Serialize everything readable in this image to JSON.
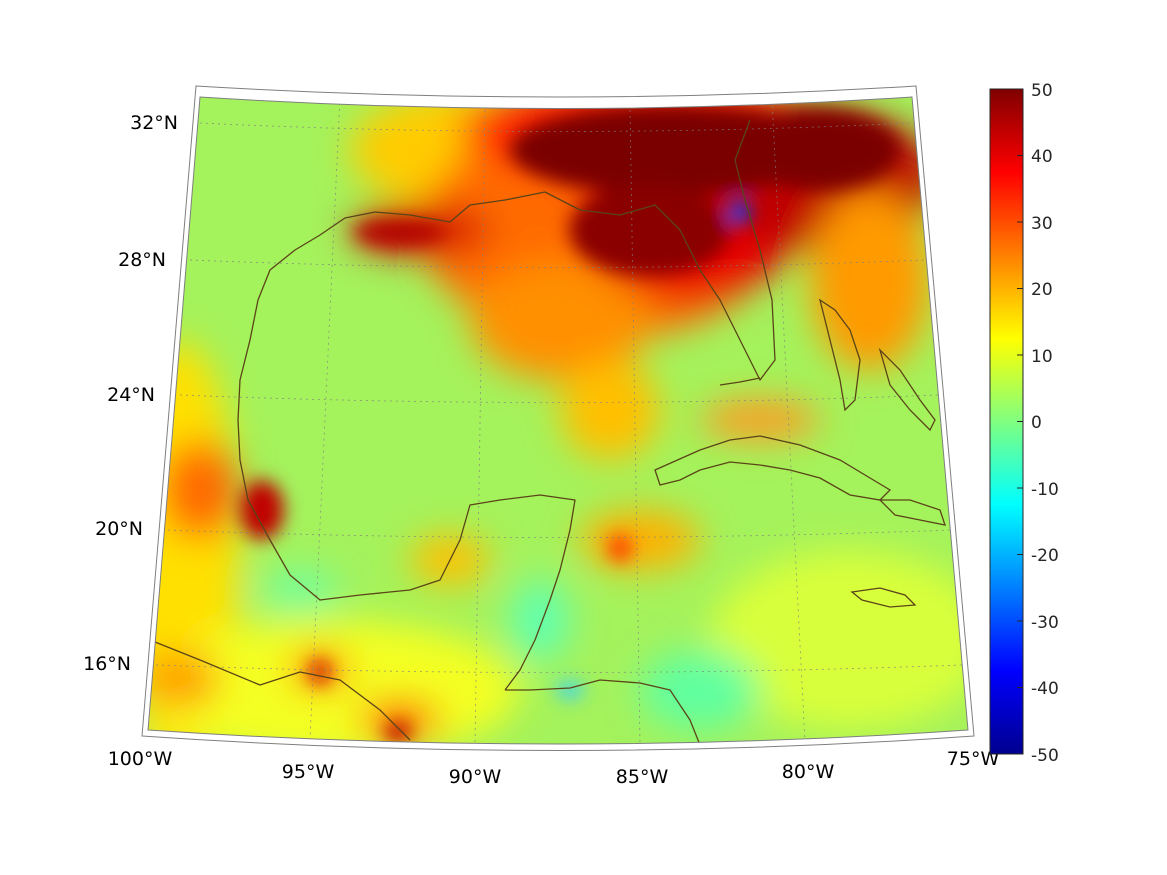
{
  "map": {
    "projection": "conic",
    "lon_ticks": [
      "100°W",
      "95°W",
      "90°W",
      "85°W",
      "80°W",
      "75°W"
    ],
    "lat_ticks": [
      "32°N",
      "28°N",
      "24°N",
      "20°N",
      "16°N"
    ],
    "region": "Gulf of Mexico and western Caribbean",
    "grid": true
  },
  "colorbar": {
    "colormap": "jet",
    "min": -50,
    "max": 50,
    "ticks": [
      "50",
      "40",
      "30",
      "20",
      "10",
      "0",
      "-10",
      "-20",
      "-30",
      "-40",
      "-50"
    ],
    "colors": [
      "#00008f",
      "#0000ff",
      "#0080ff",
      "#00ffff",
      "#80ff80",
      "#ffff00",
      "#ff8000",
      "#ff0000",
      "#800000"
    ]
  },
  "coastline_color": "#5a4418"
}
